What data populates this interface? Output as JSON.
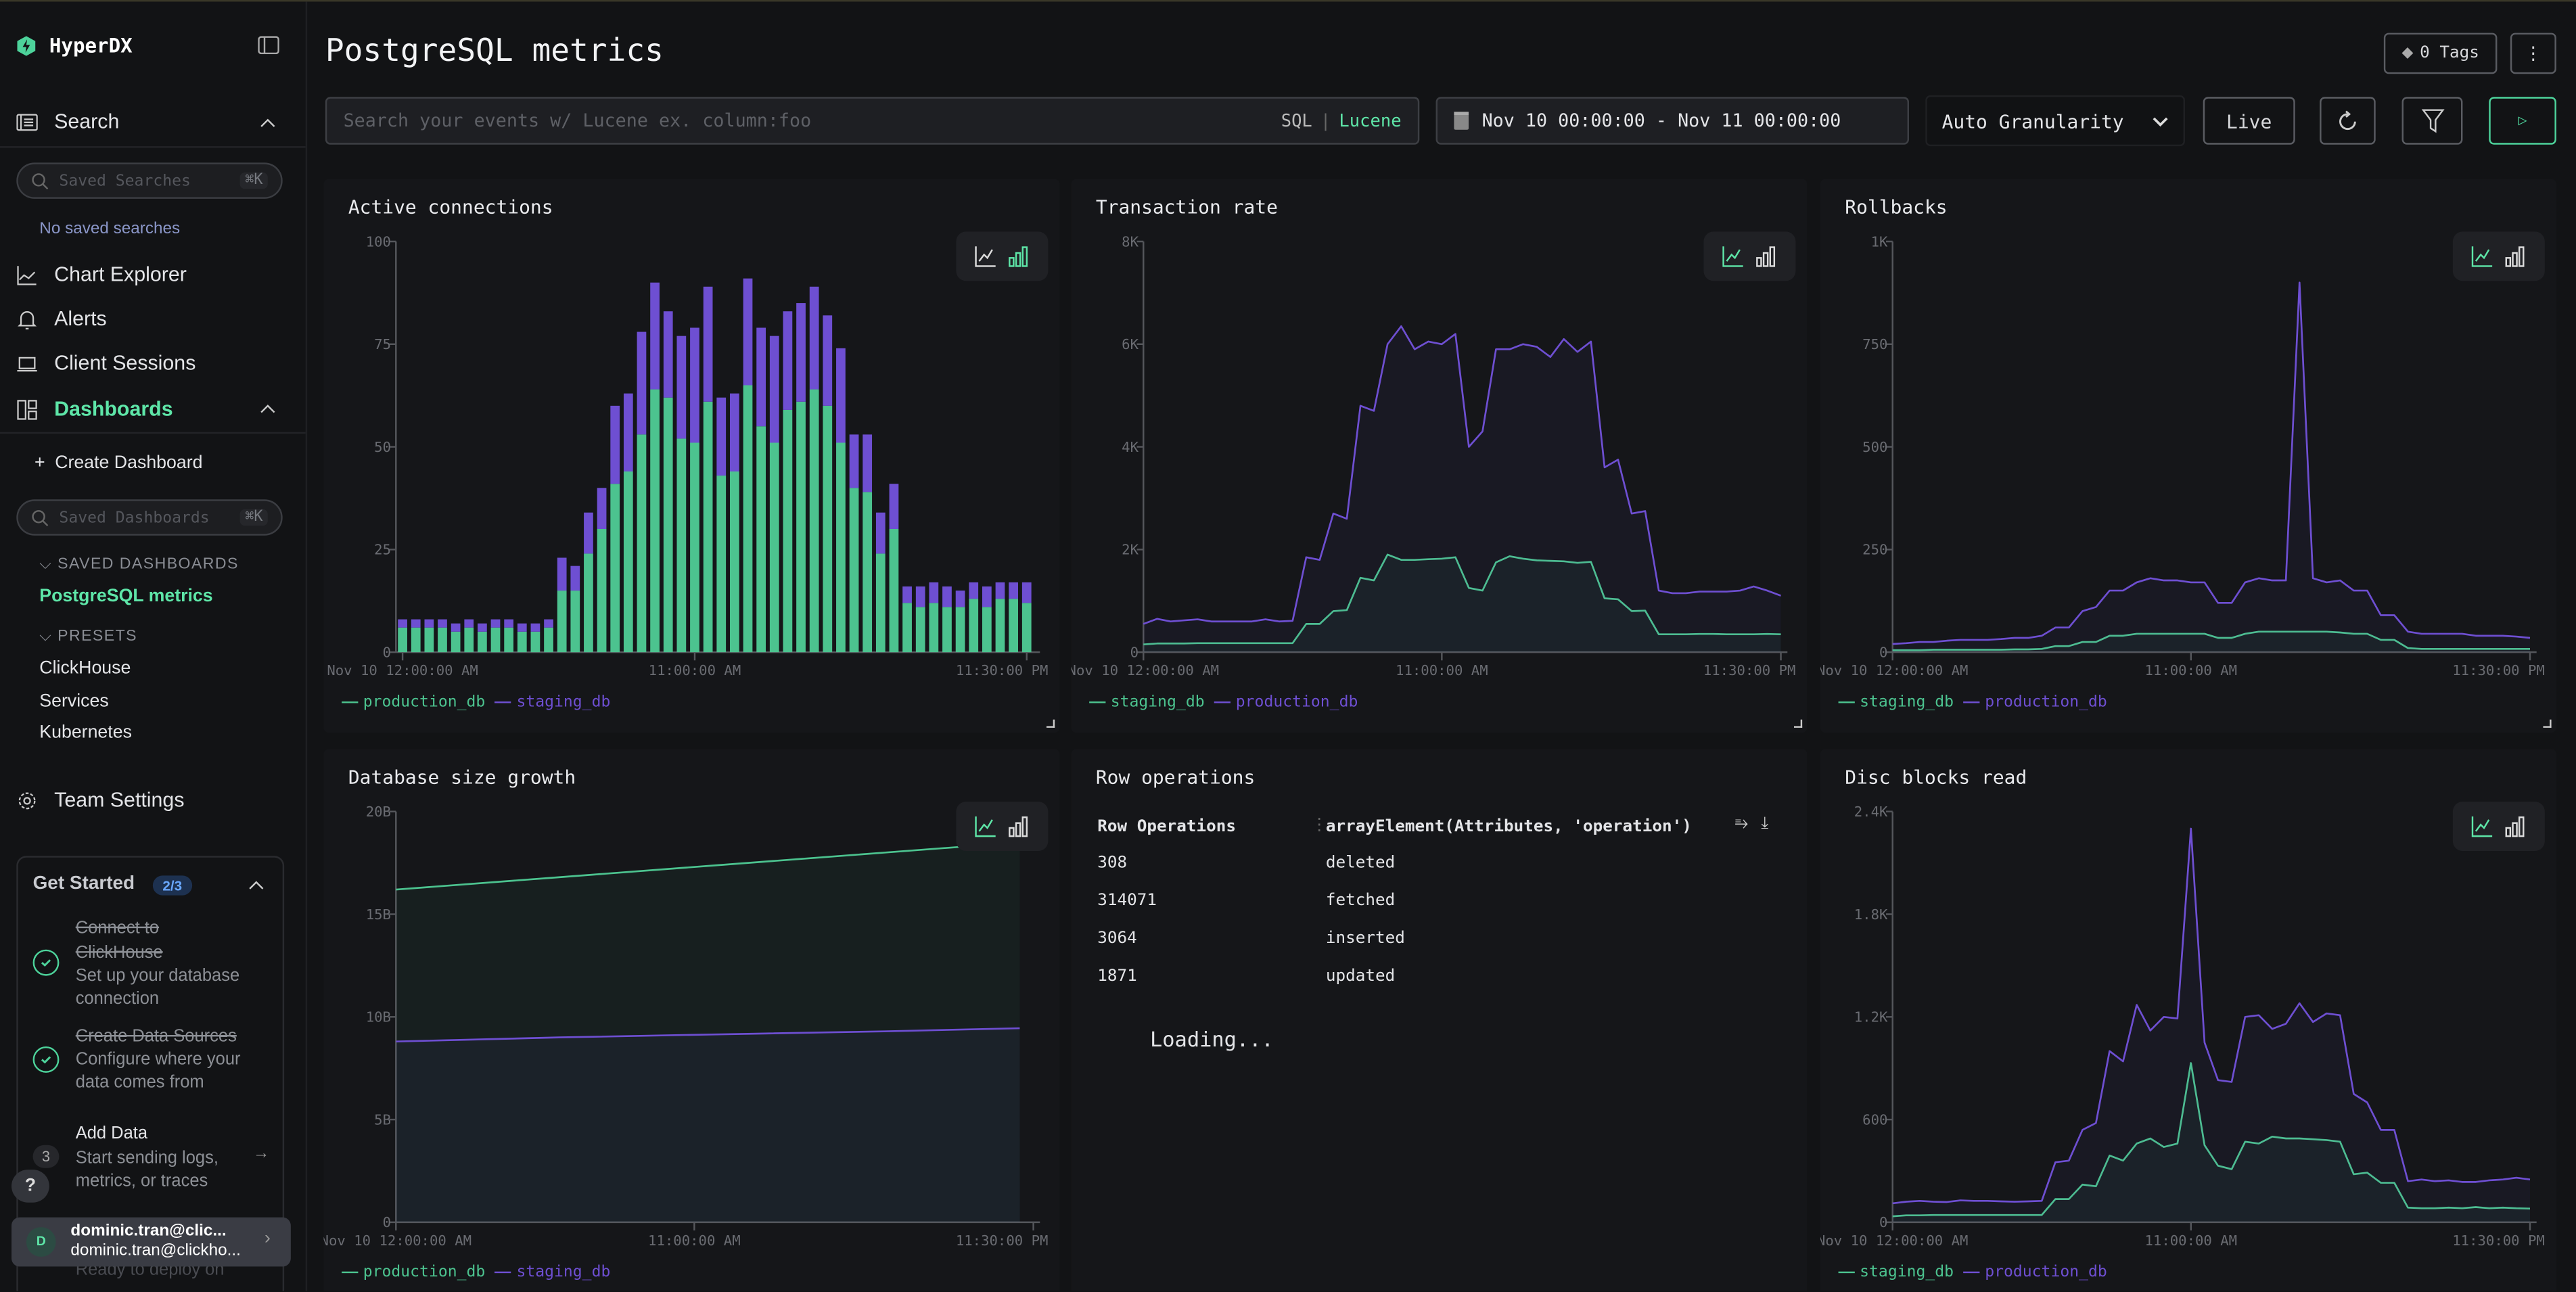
{
  "app": {
    "name": "HyperDX"
  },
  "colors": {
    "accent": "#5ee6a8",
    "green_series": "#4cc38f",
    "purple_series": "#6e4fd2",
    "background": "#121315",
    "panel": "#151619"
  },
  "sidebar": {
    "search": {
      "label": "Search",
      "icon": "search-list-icon",
      "input_placeholder": "Saved Searches",
      "shortcut": "⌘K",
      "empty_text": "No saved searches"
    },
    "nav": [
      {
        "label": "Chart Explorer",
        "icon": "line-chart-icon"
      },
      {
        "label": "Alerts",
        "icon": "bell-icon"
      },
      {
        "label": "Client Sessions",
        "icon": "laptop-icon"
      }
    ],
    "dashboards": {
      "label": "Dashboards",
      "icon": "dashboard-icon",
      "active": true,
      "create_label": "Create Dashboard",
      "input_placeholder": "Saved Dashboards",
      "shortcut": "⌘K",
      "saved_heading": "SAVED DASHBOARDS",
      "saved": [
        "PostgreSQL metrics"
      ],
      "presets_heading": "PRESETS",
      "presets": [
        "ClickHouse",
        "Services",
        "Kubernetes"
      ]
    },
    "team_settings": {
      "label": "Team Settings",
      "icon": "gear-icon"
    },
    "get_started": {
      "title": "Get Started",
      "badge": "2/3",
      "steps": [
        {
          "title_line1": "Connect to",
          "title_line2": "ClickHouse",
          "desc_line1": "Set up your database",
          "desc_line2": "connection",
          "done": true
        },
        {
          "title_line1": "Create Data Sources",
          "desc_line1": "Configure where your",
          "desc_line2": "data comes from",
          "done": true
        },
        {
          "number": "3",
          "title_line1": "Add Data",
          "desc_line1": "Start sending logs,",
          "desc_line2": "metrics, or traces",
          "done": false
        }
      ],
      "footer_text": "Ready to deploy on"
    },
    "help_label": "?",
    "user": {
      "initial": "D",
      "name": "dominic.tran@clic...",
      "email": "dominic.tran@clickho..."
    }
  },
  "header": {
    "title": "PostgreSQL metrics",
    "tags_label": "0 Tags",
    "search_placeholder": "Search your events w/ Lucene ex. column:foo",
    "lang_sql": "SQL",
    "lang_sep": "|",
    "lang_lucene": "Lucene",
    "time_range": "Nov 10 00:00:00 - Nov 11 00:00:00",
    "granularity": "Auto Granularity",
    "live_label": "Live"
  },
  "row_operations": {
    "title": "Row operations",
    "columns": [
      "Row Operations",
      "arrayElement(Attributes, 'operation')"
    ],
    "rows": [
      [
        "308",
        "deleted"
      ],
      [
        "314071",
        "fetched"
      ],
      [
        "3064",
        "inserted"
      ],
      [
        "1871",
        "updated"
      ]
    ],
    "loading_text": "Loading..."
  },
  "chart_data": [
    {
      "title": "Active connections",
      "type": "bar",
      "stacked": true,
      "ylim": [
        0,
        100
      ],
      "y_ticks": [
        0,
        25,
        50,
        75,
        100
      ],
      "y_tick_labels": [
        "0",
        "25",
        "50",
        "75",
        "100"
      ],
      "x_ticks": [
        {
          "at": "00:00",
          "label": "Nov 10 12:00:00 AM"
        },
        {
          "at": "11:00",
          "label": "11:00:00 AM"
        },
        {
          "at": "23:30",
          "label": "11:30:00 PM"
        }
      ],
      "x": [
        "00:00",
        "00:30",
        "01:00",
        "01:30",
        "02:00",
        "02:30",
        "03:00",
        "03:30",
        "04:00",
        "04:30",
        "05:00",
        "05:30",
        "06:00",
        "06:30",
        "07:00",
        "07:30",
        "08:00",
        "08:30",
        "09:00",
        "09:30",
        "10:00",
        "10:30",
        "11:00",
        "11:30",
        "12:00",
        "12:30",
        "13:00",
        "13:30",
        "14:00",
        "14:30",
        "15:00",
        "15:30",
        "16:00",
        "16:30",
        "17:00",
        "17:30",
        "18:00",
        "18:30",
        "19:00",
        "19:30",
        "20:00",
        "20:30",
        "21:00",
        "21:30",
        "22:00",
        "22:30",
        "23:00",
        "23:30"
      ],
      "series": [
        {
          "name": "production_db",
          "color": "#4cc38f",
          "values": [
            6,
            6,
            6,
            6,
            5,
            6,
            5,
            6,
            6,
            5,
            5,
            6,
            15,
            15,
            24,
            30,
            41,
            44,
            53,
            64,
            62,
            52,
            51,
            61,
            43,
            44,
            65,
            55,
            51,
            59,
            61,
            64,
            60,
            51,
            40,
            39,
            24,
            30,
            12,
            11,
            12,
            11,
            11,
            13,
            11,
            13,
            13,
            12
          ]
        },
        {
          "name": "staging_db",
          "color": "#6e4fd2",
          "values": [
            2,
            2,
            2,
            2,
            2,
            2,
            2,
            2,
            2,
            2,
            2,
            2,
            8,
            6,
            10,
            10,
            19,
            19,
            25,
            26,
            21,
            25,
            28,
            28,
            19,
            19,
            26,
            24,
            26,
            24,
            24,
            25,
            22,
            23,
            13,
            14,
            10,
            11,
            4,
            5,
            5,
            5,
            4,
            4,
            5,
            4,
            4,
            5
          ]
        }
      ],
      "legend": [
        "production_db",
        "staging_db"
      ],
      "legend_placement": "bottom-left"
    },
    {
      "title": "Transaction rate",
      "type": "line",
      "ylim": [
        0,
        8000
      ],
      "y_ticks": [
        0,
        2000,
        4000,
        6000,
        8000
      ],
      "y_tick_labels": [
        "0",
        "2K",
        "4K",
        "6K",
        "8K"
      ],
      "x_ticks": [
        {
          "at": "00:00",
          "label": "Nov 10 12:00:00 AM"
        },
        {
          "at": "11:00",
          "label": "11:00:00 AM"
        },
        {
          "at": "23:30",
          "label": "11:30:00 PM"
        }
      ],
      "x": [
        "00:00",
        "00:30",
        "01:00",
        "01:30",
        "02:00",
        "02:30",
        "03:00",
        "03:30",
        "04:00",
        "04:30",
        "05:00",
        "05:30",
        "06:00",
        "06:30",
        "07:00",
        "07:30",
        "08:00",
        "08:30",
        "09:00",
        "09:30",
        "10:00",
        "10:30",
        "11:00",
        "11:30",
        "12:00",
        "12:30",
        "13:00",
        "13:30",
        "14:00",
        "14:30",
        "15:00",
        "15:30",
        "16:00",
        "16:30",
        "17:00",
        "17:30",
        "18:00",
        "18:30",
        "19:00",
        "19:30",
        "20:00",
        "20:30",
        "21:00",
        "21:30",
        "22:00",
        "22:30",
        "23:00",
        "23:30"
      ],
      "series": [
        {
          "name": "staging_db",
          "color": "#4cc38f",
          "values": [
            150,
            170,
            170,
            170,
            175,
            175,
            175,
            175,
            175,
            175,
            175,
            175,
            550,
            550,
            800,
            820,
            1450,
            1400,
            1900,
            1800,
            1800,
            1810,
            1820,
            1850,
            1250,
            1200,
            1750,
            1870,
            1820,
            1790,
            1780,
            1770,
            1740,
            1760,
            1050,
            1030,
            800,
            810,
            350,
            350,
            350,
            355,
            355,
            350,
            350,
            350,
            355,
            350
          ]
        },
        {
          "name": "production_db",
          "color": "#6e4fd2",
          "values": [
            550,
            650,
            600,
            620,
            640,
            600,
            600,
            600,
            600,
            640,
            600,
            610,
            1850,
            1800,
            2700,
            2600,
            4800,
            4700,
            6000,
            6350,
            5900,
            6050,
            6000,
            6200,
            4000,
            4300,
            5900,
            5900,
            6000,
            5950,
            5750,
            6100,
            5850,
            6050,
            3600,
            3750,
            2700,
            2750,
            1200,
            1150,
            1150,
            1180,
            1180,
            1180,
            1200,
            1280,
            1200,
            1100
          ]
        }
      ],
      "legend": [
        "staging_db",
        "production_db"
      ],
      "legend_placement": "bottom-left"
    },
    {
      "title": "Rollbacks",
      "type": "line",
      "ylim": [
        0,
        1000
      ],
      "y_ticks": [
        0,
        250,
        500,
        750,
        1000
      ],
      "y_tick_labels": [
        "0",
        "250",
        "500",
        "750",
        "1K"
      ],
      "x_ticks": [
        {
          "at": "00:00",
          "label": "Nov 10 12:00:00 AM"
        },
        {
          "at": "11:00",
          "label": "11:00:00 AM"
        },
        {
          "at": "23:30",
          "label": "11:30:00 PM"
        }
      ],
      "x": [
        "00:00",
        "00:30",
        "01:00",
        "01:30",
        "02:00",
        "02:30",
        "03:00",
        "03:30",
        "04:00",
        "04:30",
        "05:00",
        "05:30",
        "06:00",
        "06:30",
        "07:00",
        "07:30",
        "08:00",
        "08:30",
        "09:00",
        "09:30",
        "10:00",
        "10:30",
        "11:00",
        "11:30",
        "12:00",
        "12:30",
        "13:00",
        "13:30",
        "14:00",
        "14:30",
        "15:00",
        "15:30",
        "16:00",
        "16:30",
        "17:00",
        "17:30",
        "18:00",
        "18:30",
        "19:00",
        "19:30",
        "20:00",
        "20:30",
        "21:00",
        "21:30",
        "22:00",
        "22:30",
        "23:00",
        "23:30"
      ],
      "series": [
        {
          "name": "staging_db",
          "color": "#4cc38f",
          "values": [
            5,
            5,
            5,
            6,
            6,
            6,
            6,
            6,
            6,
            7,
            7,
            8,
            15,
            15,
            25,
            25,
            40,
            40,
            45,
            45,
            45,
            45,
            45,
            45,
            35,
            35,
            45,
            50,
            50,
            50,
            50,
            50,
            50,
            48,
            45,
            45,
            30,
            30,
            10,
            8,
            8,
            8,
            8,
            8,
            8,
            8,
            8,
            8
          ]
        },
        {
          "name": "production_db",
          "color": "#6e4fd2",
          "values": [
            20,
            22,
            25,
            25,
            28,
            30,
            30,
            30,
            32,
            35,
            35,
            40,
            60,
            60,
            100,
            110,
            150,
            150,
            170,
            180,
            175,
            175,
            170,
            170,
            120,
            120,
            170,
            180,
            175,
            175,
            900,
            180,
            170,
            175,
            150,
            150,
            90,
            90,
            50,
            45,
            45,
            45,
            45,
            40,
            40,
            40,
            38,
            35
          ]
        }
      ],
      "legend": [
        "staging_db",
        "production_db"
      ],
      "legend_placement": "bottom-left"
    },
    {
      "title": "Database size growth",
      "type": "line",
      "ylim": [
        0,
        20
      ],
      "y_ticks": [
        0,
        5,
        10,
        15,
        20
      ],
      "y_tick_labels": [
        "0",
        "5B",
        "10B",
        "15B",
        "20B"
      ],
      "x_ticks": [
        {
          "at": "00:00",
          "label": "Nov 10 12:00:00 AM"
        },
        {
          "at": "11:00",
          "label": "11:00:00 AM"
        },
        {
          "at": "23:30",
          "label": "11:30:00 PM"
        }
      ],
      "x": [
        "00:00",
        "06:00",
        "12:00",
        "18:00",
        "23:00"
      ],
      "series": [
        {
          "name": "production_db",
          "color": "#4cc38f",
          "values": [
            16.2,
            16.8,
            17.4,
            18.0,
            18.5
          ]
        },
        {
          "name": "staging_db",
          "color": "#6e4fd2",
          "values": [
            8.8,
            9.0,
            9.15,
            9.3,
            9.45
          ]
        }
      ],
      "legend": [
        "production_db",
        "staging_db"
      ],
      "legend_placement": "bottom-left"
    },
    {
      "title": "Disc blocks read",
      "type": "line",
      "ylim": [
        0,
        2400
      ],
      "y_ticks": [
        0,
        600,
        1200,
        1800,
        2400
      ],
      "y_tick_labels": [
        "0",
        "600",
        "1.2K",
        "1.8K",
        "2.4K"
      ],
      "x_ticks": [
        {
          "at": "00:00",
          "label": "Nov 10 12:00:00 AM"
        },
        {
          "at": "11:00",
          "label": "11:00:00 AM"
        },
        {
          "at": "23:30",
          "label": "11:30:00 PM"
        }
      ],
      "x": [
        "00:00",
        "00:30",
        "01:00",
        "01:30",
        "02:00",
        "02:30",
        "03:00",
        "03:30",
        "04:00",
        "04:30",
        "05:00",
        "05:30",
        "06:00",
        "06:30",
        "07:00",
        "07:30",
        "08:00",
        "08:30",
        "09:00",
        "09:30",
        "10:00",
        "10:30",
        "11:00",
        "11:30",
        "12:00",
        "12:30",
        "13:00",
        "13:30",
        "14:00",
        "14:30",
        "15:00",
        "15:30",
        "16:00",
        "16:30",
        "17:00",
        "17:30",
        "18:00",
        "18:30",
        "19:00",
        "19:30",
        "20:00",
        "20:30",
        "21:00",
        "21:30",
        "22:00",
        "22:30",
        "23:00",
        "23:30"
      ],
      "series": [
        {
          "name": "staging_db",
          "color": "#4cc38f",
          "values": [
            35,
            40,
            40,
            42,
            42,
            42,
            42,
            42,
            42,
            42,
            42,
            42,
            135,
            135,
            220,
            210,
            390,
            360,
            460,
            490,
            440,
            460,
            930,
            450,
            330,
            310,
            470,
            460,
            500,
            490,
            490,
            485,
            480,
            470,
            280,
            290,
            230,
            230,
            85,
            82,
            82,
            85,
            82,
            88,
            82,
            85,
            82,
            80
          ]
        },
        {
          "name": "production_db",
          "color": "#6e4fd2",
          "values": [
            110,
            120,
            125,
            120,
            118,
            128,
            125,
            125,
            122,
            120,
            122,
            125,
            350,
            360,
            540,
            580,
            1000,
            940,
            1270,
            1120,
            1200,
            1190,
            2300,
            1050,
            830,
            820,
            1200,
            1210,
            1130,
            1160,
            1280,
            1170,
            1220,
            1210,
            750,
            700,
            540,
            540,
            240,
            250,
            240,
            245,
            235,
            235,
            245,
            250,
            260,
            250
          ]
        }
      ],
      "legend": [
        "staging_db",
        "production_db"
      ],
      "legend_placement": "bottom-left"
    }
  ]
}
